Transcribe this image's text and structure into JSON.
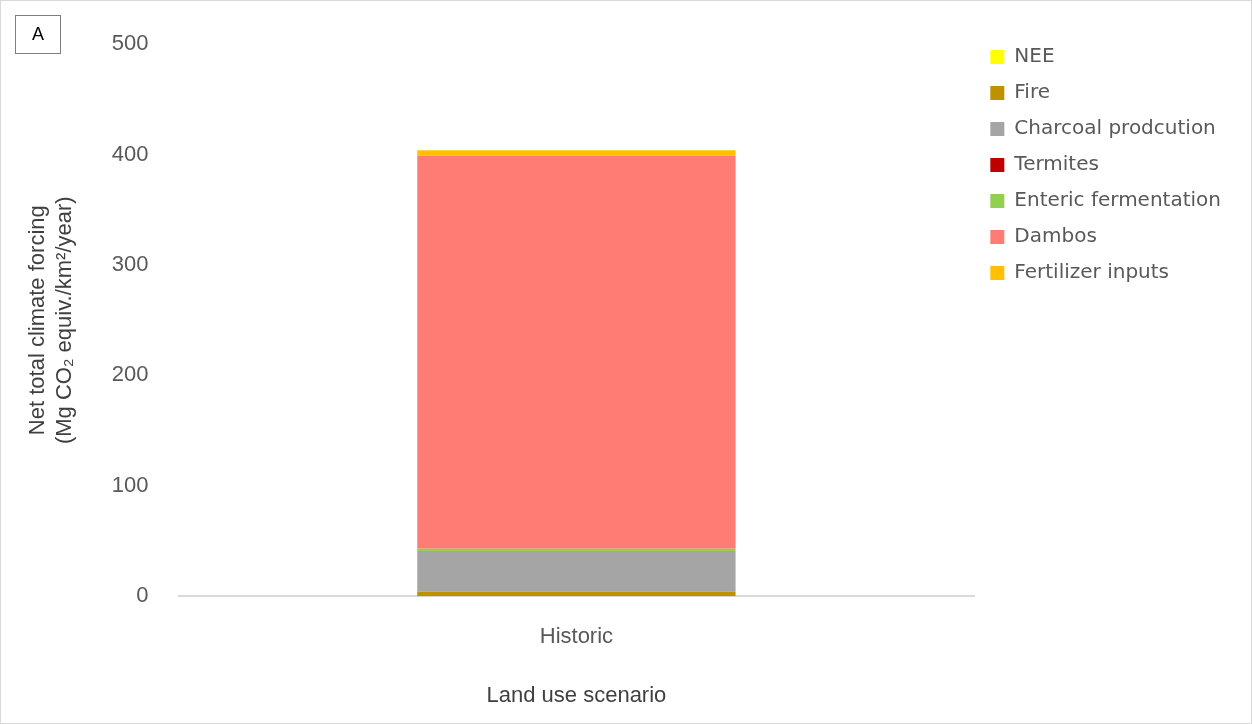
{
  "chart_data": {
    "type": "bar",
    "stacked": true,
    "xlabel": "Land use scenario",
    "ylabel": "Net total climate forcing\n(Mg CO₂ equiv./km²/year)",
    "annotations": [
      "A"
    ],
    "categories": [
      "Historic"
    ],
    "series": [
      {
        "name": "NEE",
        "color": "#ffff00",
        "values": [
          0
        ]
      },
      {
        "name": "Fire",
        "color": "#bf9000",
        "values": [
          4
        ]
      },
      {
        "name": "Charcoal prodcution",
        "color": "#a5a5a5",
        "values": [
          37
        ]
      },
      {
        "name": "Termites",
        "color": "#c00000",
        "values": [
          0
        ]
      },
      {
        "name": "Enteric fermentation",
        "color": "#92d050",
        "values": [
          2
        ]
      },
      {
        "name": "Dambos",
        "color": "#ff7c75",
        "values": [
          356
        ]
      },
      {
        "name": "Fertilizer inputs",
        "color": "#ffc000",
        "values": [
          5
        ]
      }
    ],
    "ylim": [
      0,
      500
    ],
    "yticks": [
      0,
      100,
      200,
      300,
      400,
      500
    ],
    "grid": false,
    "legend": "top right"
  }
}
